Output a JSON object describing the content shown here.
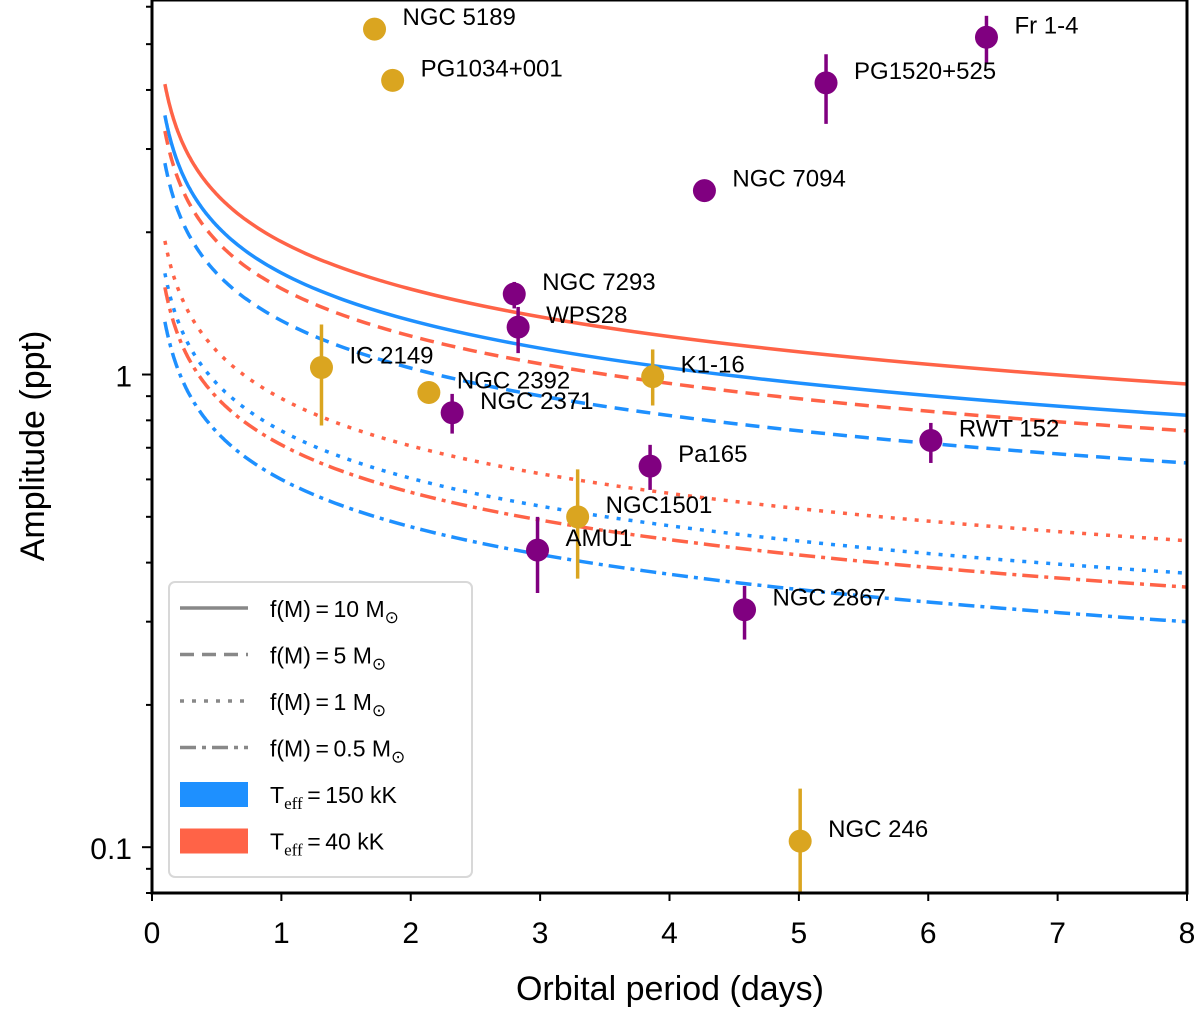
{
  "chart_data": {
    "type": "scatter",
    "title": "",
    "xlabel": "Orbital period (days)",
    "ylabel": "Amplitude (ppt)",
    "xlim": [
      0,
      8
    ],
    "ylim": [
      0.08,
      6.2
    ],
    "yscale": "log",
    "grid": false,
    "x_ticks": [
      0,
      1,
      2,
      3,
      4,
      5,
      6,
      7,
      8
    ],
    "x_tick_labels": [
      "0",
      "1",
      "2",
      "3",
      "4",
      "5",
      "6",
      "7",
      "8"
    ],
    "y_ticks": [
      0.1,
      1
    ],
    "y_tick_labels": [
      "0.1",
      "1"
    ],
    "colors": {
      "hot_teff": "#1e90ff",
      "cool_teff": "#ff6347",
      "group_gold": "#daa520",
      "group_purple": "#800080",
      "legend_line": "#888888"
    },
    "points": [
      {
        "name": "NGC 5189",
        "x": 1.72,
        "y": 5.38,
        "group": "gold",
        "yerr_low": null,
        "yerr_high": null
      },
      {
        "name": "PG1034+001",
        "x": 1.86,
        "y": 4.19,
        "group": "gold",
        "yerr_low": null,
        "yerr_high": null
      },
      {
        "name": "Fr 1-4",
        "x": 6.45,
        "y": 5.17,
        "group": "purple",
        "yerr_low": 4.56,
        "yerr_high": 5.74
      },
      {
        "name": "PG1520+525",
        "x": 5.21,
        "y": 4.14,
        "group": "purple",
        "yerr_low": 3.39,
        "yerr_high": 4.76
      },
      {
        "name": "NGC 7094",
        "x": 4.27,
        "y": 2.45,
        "group": "purple",
        "yerr_low": null,
        "yerr_high": null
      },
      {
        "name": "NGC 7293",
        "x": 2.8,
        "y": 1.48,
        "group": "purple",
        "yerr_low": 1.38,
        "yerr_high": 1.57
      },
      {
        "name": "WPS28",
        "x": 2.83,
        "y": 1.26,
        "group": "purple",
        "yerr_low": 1.11,
        "yerr_high": 1.39
      },
      {
        "name": "IC 2149",
        "x": 1.31,
        "y": 1.035,
        "group": "gold",
        "yerr_low": 0.78,
        "yerr_high": 1.276
      },
      {
        "name": "NGC 2392",
        "x": 2.14,
        "y": 0.916,
        "group": "gold",
        "yerr_low": null,
        "yerr_high": null
      },
      {
        "name": "NGC 2371",
        "x": 2.32,
        "y": 0.83,
        "group": "purple",
        "yerr_low": 0.75,
        "yerr_high": 0.91
      },
      {
        "name": "K1-16",
        "x": 3.87,
        "y": 0.99,
        "group": "gold",
        "yerr_low": 0.86,
        "yerr_high": 1.13
      },
      {
        "name": "RWT 152",
        "x": 6.02,
        "y": 0.725,
        "group": "purple",
        "yerr_low": 0.65,
        "yerr_high": 0.79
      },
      {
        "name": "Pa165",
        "x": 3.85,
        "y": 0.64,
        "group": "purple",
        "yerr_low": 0.57,
        "yerr_high": 0.71
      },
      {
        "name": "NGC1501",
        "x": 3.29,
        "y": 0.5,
        "group": "gold",
        "yerr_low": 0.37,
        "yerr_high": 0.63
      },
      {
        "name": "AMU1",
        "x": 2.98,
        "y": 0.425,
        "group": "purple",
        "yerr_low": 0.345,
        "yerr_high": 0.5
      },
      {
        "name": "NGC 2867",
        "x": 4.58,
        "y": 0.318,
        "group": "purple",
        "yerr_low": 0.275,
        "yerr_high": 0.357
      },
      {
        "name": "NGC 246",
        "x": 5.01,
        "y": 0.103,
        "group": "gold",
        "yerr_low": 0.08,
        "yerr_high": 0.133
      }
    ],
    "curves": {
      "model": "A = K * P^(-1/3)",
      "x_range": [
        0.1,
        8
      ],
      "series": [
        {
          "name": "f(M)=10, Teff=40 kK",
          "mass": "10",
          "teff": "40",
          "style": "solid",
          "K": 1.91
        },
        {
          "name": "f(M)=10, Teff=150 kK",
          "mass": "10",
          "teff": "150",
          "style": "solid",
          "K": 1.64
        },
        {
          "name": "f(M)=5, Teff=40 kK",
          "mass": "5",
          "teff": "40",
          "style": "dashed",
          "K": 1.52
        },
        {
          "name": "f(M)=5, Teff=150 kK",
          "mass": "5",
          "teff": "150",
          "style": "dashed",
          "K": 1.3
        },
        {
          "name": "f(M)=1, Teff=40 kK",
          "mass": "1",
          "teff": "40",
          "style": "dotted",
          "K": 0.89
        },
        {
          "name": "f(M)=1, Teff=150 kK",
          "mass": "1",
          "teff": "150",
          "style": "dotted",
          "K": 0.76
        },
        {
          "name": "f(M)=0.5, Teff=40 kK",
          "mass": "0.5",
          "teff": "40",
          "style": "dashdot",
          "K": 0.71
        },
        {
          "name": "f(M)=0.5, Teff=150 kK",
          "mass": "0.5",
          "teff": "150",
          "style": "dashdot",
          "K": 0.6
        }
      ]
    },
    "legend": {
      "placement": "lower-left",
      "entries": [
        {
          "kind": "line",
          "style": "solid",
          "prefix": "f(M) = 10 M",
          "suffix": "⊙"
        },
        {
          "kind": "line",
          "style": "dashed",
          "prefix": "f(M) = 5 M",
          "suffix": "⊙"
        },
        {
          "kind": "line",
          "style": "dotted",
          "prefix": "f(M) = 1 M",
          "suffix": "⊙"
        },
        {
          "kind": "line",
          "style": "dashdot",
          "prefix": "f(M) = 0.5 M",
          "suffix": "⊙"
        },
        {
          "kind": "patch",
          "color_key": "hot_teff",
          "prefix": "T",
          "sub": "eff",
          "rest": " = 150 kK"
        },
        {
          "kind": "patch",
          "color_key": "cool_teff",
          "prefix": "T",
          "sub": "eff",
          "rest": " = 40 kK"
        }
      ]
    }
  }
}
